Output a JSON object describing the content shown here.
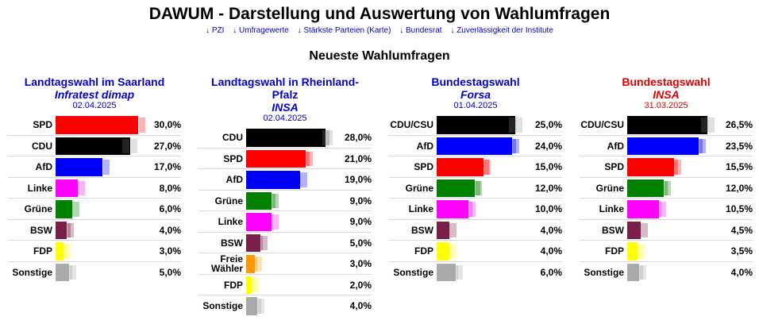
{
  "header": {
    "title": "DAWUM - Darstellung und Auswertung von Wahlumfragen",
    "nav": [
      {
        "arrow": "↓",
        "label": "PZI"
      },
      {
        "arrow": "↓",
        "label": "Umfragewerte"
      },
      {
        "arrow": "↓",
        "label": "Stärkste Parteien (Karte)"
      },
      {
        "arrow": "↓",
        "label": "Bundesrat"
      },
      {
        "arrow": "↓",
        "label": "Zuverlässigkeit der Institute"
      }
    ]
  },
  "section_title": "Neueste Wahlumfragen",
  "colors": {
    "accent_blue": "#0000cc",
    "accent_red": "#dd0000",
    "CDU": "#000000",
    "CDU/CSU": "#000000",
    "SPD": "#ff0000",
    "AfD": "#0000ff",
    "Linke": "#ff00ff",
    "Grüne": "#008000",
    "BSW": "#7a1f4a",
    "FDP": "#ffff00",
    "Freie Wähler": "#ff9900",
    "Sonstige": "#aaaaaa"
  },
  "polls": [
    {
      "title": "Landtagswahl im Saarland",
      "institute": "Infratest dimap",
      "date": "02.04.2025",
      "title_color": "blue",
      "scale_max": 30.0,
      "results": [
        {
          "party": "SPD",
          "value": 30.0,
          "label": "30,0%",
          "previous": 28.5
        },
        {
          "party": "CDU",
          "value": 27.0,
          "label": "27,0%",
          "previous": 25.5
        },
        {
          "party": "AfD",
          "value": 17.0,
          "label": "17,0%",
          "previous": 15.0
        },
        {
          "party": "Linke",
          "value": 8.0,
          "label": "8,0%",
          "previous": 7.0
        },
        {
          "party": "Grüne",
          "value": 6.0,
          "label": "6,0%",
          "previous": 5.0
        },
        {
          "party": "BSW",
          "value": 4.0,
          "label": "4,0%",
          "previous": 4.0
        },
        {
          "party": "FDP",
          "value": 3.0,
          "label": "3,0%",
          "previous": 2.5
        },
        {
          "party": "Sonstige",
          "value": 5.0,
          "label": "5,0%",
          "previous": 4.5
        }
      ]
    },
    {
      "title": "Landtagswahl in Rheinland-Pfalz",
      "institute": "INSA",
      "date": "02.04.2025",
      "title_color": "blue",
      "scale_max": 28.0,
      "results": [
        {
          "party": "CDU",
          "value": 28.0,
          "label": "28,0%",
          "previous": 28.0
        },
        {
          "party": "SPD",
          "value": 21.0,
          "label": "21,0%",
          "previous": 21.0
        },
        {
          "party": "AfD",
          "value": 19.0,
          "label": "19,0%",
          "previous": 18.0
        },
        {
          "party": "Grüne",
          "value": 9.0,
          "label": "9,0%",
          "previous": 9.0
        },
        {
          "party": "Linke",
          "value": 9.0,
          "label": "9,0%",
          "previous": 8.0
        },
        {
          "party": "BSW",
          "value": 5.0,
          "label": "5,0%",
          "previous": 4.5
        },
        {
          "party": "Freie Wähler",
          "value": 3.0,
          "label": "3,0%",
          "previous": 2.5
        },
        {
          "party": "FDP",
          "value": 2.0,
          "label": "2,0%",
          "previous": 1.5
        },
        {
          "party": "Sonstige",
          "value": 4.0,
          "label": "4,0%",
          "previous": 4.0
        }
      ]
    },
    {
      "title": "Bundestagswahl",
      "institute": "Forsa",
      "date": "01.04.2025",
      "title_color": "blue",
      "scale_max": 25.0,
      "results": [
        {
          "party": "CDU/CSU",
          "value": 25.0,
          "label": "25,0%",
          "previous": 24.0
        },
        {
          "party": "AfD",
          "value": 24.0,
          "label": "24,0%",
          "previous": 24.0
        },
        {
          "party": "SPD",
          "value": 15.0,
          "label": "15,0%",
          "previous": 15.5
        },
        {
          "party": "Grüne",
          "value": 12.0,
          "label": "12,0%",
          "previous": 12.5
        },
        {
          "party": "Linke",
          "value": 10.0,
          "label": "10,0%",
          "previous": 10.0
        },
        {
          "party": "BSW",
          "value": 4.0,
          "label": "4,0%",
          "previous": 3.0
        },
        {
          "party": "FDP",
          "value": 4.0,
          "label": "4,0%",
          "previous": 3.5
        },
        {
          "party": "Sonstige",
          "value": 6.0,
          "label": "6,0%",
          "previous": 5.5
        }
      ]
    },
    {
      "title": "Bundestagswahl",
      "institute": "INSA",
      "date": "31.03.2025",
      "title_color": "red",
      "scale_max": 26.5,
      "results": [
        {
          "party": "CDU/CSU",
          "value": 26.5,
          "label": "26,5%",
          "previous": 25.5
        },
        {
          "party": "AfD",
          "value": 23.5,
          "label": "23,5%",
          "previous": 23.5
        },
        {
          "party": "SPD",
          "value": 15.5,
          "label": "15,5%",
          "previous": 15.5
        },
        {
          "party": "Grüne",
          "value": 12.0,
          "label": "12,0%",
          "previous": 12.0
        },
        {
          "party": "Linke",
          "value": 10.5,
          "label": "10,5%",
          "previous": 10.0
        },
        {
          "party": "BSW",
          "value": 4.5,
          "label": "4,5%",
          "previous": 3.5
        },
        {
          "party": "FDP",
          "value": 3.5,
          "label": "3,5%",
          "previous": 3.0
        },
        {
          "party": "Sonstige",
          "value": 4.0,
          "label": "4,0%",
          "previous": 4.0
        }
      ]
    }
  ]
}
